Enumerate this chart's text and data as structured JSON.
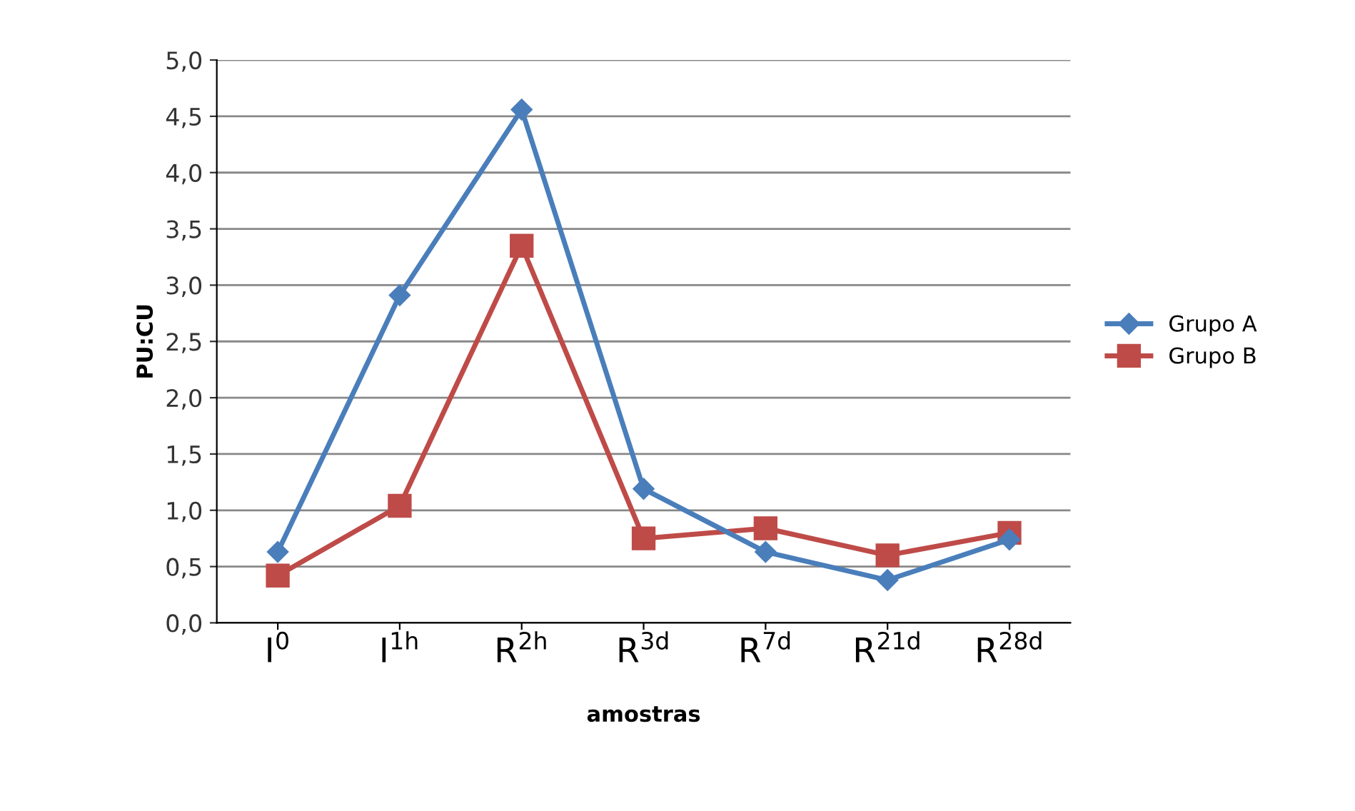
{
  "chart_data": {
    "type": "line",
    "xlabel": "amostras",
    "ylabel": "PU:CU",
    "categories": [
      "I$^{0}$",
      "I$^{1h}$",
      "R$^{2h}$",
      "R$^{3d}$",
      "R$^{7d}$",
      "R$^{21d}$",
      "R$^{28d}$"
    ],
    "series": [
      {
        "name": "Grupo A",
        "color": "#4a7ebb",
        "marker": "diamond",
        "values": [
          0.63,
          2.91,
          4.56,
          1.19,
          0.63,
          0.38,
          0.74
        ]
      },
      {
        "name": "Grupo B",
        "color": "#be4b48",
        "marker": "square",
        "values": [
          0.42,
          1.04,
          3.35,
          0.75,
          0.84,
          0.6,
          0.8
        ]
      }
    ],
    "ylim": [
      0,
      5
    ],
    "yticks": [
      {
        "value": 0,
        "label": "0,0"
      },
      {
        "value": 0.5,
        "label": "0,5"
      },
      {
        "value": 1,
        "label": "1,0"
      },
      {
        "value": 1.5,
        "label": "1,5"
      },
      {
        "value": 2,
        "label": "2,0"
      },
      {
        "value": 2.5,
        "label": "2,5"
      },
      {
        "value": 3,
        "label": "3,0"
      },
      {
        "value": 3.5,
        "label": "3,5"
      },
      {
        "value": 4,
        "label": "4,0"
      },
      {
        "value": 4.5,
        "label": "4,5"
      },
      {
        "value": 5,
        "label": "5,0"
      }
    ],
    "grid": "y",
    "legend": "right",
    "line_style": "solid"
  }
}
